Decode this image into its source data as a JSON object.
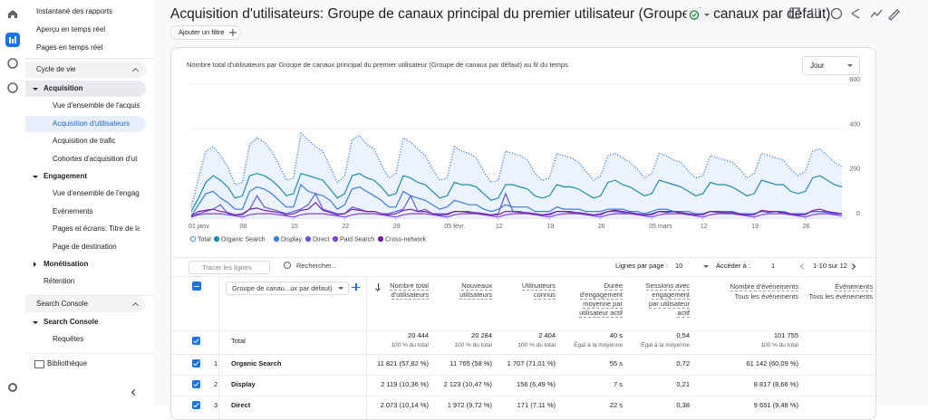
{
  "nav": [
    "Instantané des rapports",
    "Aperçu en temps réel",
    "Pages en temps réel",
    "Cycle de vie",
    "Acquisition",
    "Vue d'ensemble de l'acquis",
    "Acquisition d'utilisateurs",
    "Acquisition de trafic",
    "Cohortes d'acquisition d'ut",
    "Engagement",
    "Vue d'ensemble de l'engag",
    "Événements",
    "Pages et écrans: Titre de la",
    "Page de destination",
    "Monétisation",
    "Rétention",
    "Search Console",
    "Search Console",
    "Requêtes",
    "Bibliothèque"
  ],
  "header": {
    "title": "Acquisition d'utilisateurs: Groupe de canaux principal du premier utilisateur (Groupe de canaux par défaut)",
    "add_filter": "Ajouter un filtre"
  },
  "period_select": "Jour",
  "chart_data": {
    "type": "line",
    "title": "Nombre total d'utilisateurs par Groupe de canaux principal du premier utilisateur (Groupe de canaux par défaut) au fil du temps",
    "categories": [
      "01 janv.",
      null,
      null,
      null,
      null,
      null,
      null,
      "08",
      null,
      null,
      null,
      null,
      null,
      null,
      "15",
      null,
      null,
      null,
      null,
      null,
      null,
      "22",
      null,
      null,
      null,
      null,
      null,
      null,
      "29",
      null,
      null,
      null,
      null,
      null,
      null,
      "05 févr.",
      null,
      null,
      null,
      null,
      null,
      null,
      "12",
      null,
      null,
      null,
      null,
      null,
      null,
      "19",
      null,
      null,
      null,
      null,
      null,
      null,
      "26",
      null,
      null,
      null,
      null,
      null,
      null,
      "05 mars",
      null,
      null,
      null,
      null,
      null,
      null,
      "12",
      null,
      null,
      null,
      null,
      null,
      null,
      "19",
      null,
      null,
      null,
      null,
      null,
      null,
      "26",
      null,
      null,
      null,
      null,
      null
    ],
    "ylim": [
      0,
      600
    ],
    "yticks": [
      0,
      200,
      400,
      600
    ],
    "grid": true,
    "series": [
      {
        "name": "Total",
        "color": "#4a86e8",
        "values": [
          50,
          180,
          300,
          320,
          280,
          230,
          150,
          160,
          330,
          360,
          340,
          300,
          240,
          170,
          180,
          380,
          350,
          320,
          300,
          230,
          160,
          190,
          350,
          370,
          330,
          310,
          240,
          180,
          200,
          360,
          340,
          310,
          280,
          220,
          170,
          180,
          320,
          300,
          290,
          270,
          210,
          160,
          170,
          300,
          290,
          280,
          260,
          200,
          170,
          180,
          290,
          280,
          270,
          250,
          210,
          170,
          190,
          280,
          290,
          270,
          250,
          220,
          180,
          200,
          290,
          280,
          260,
          250,
          210,
          180,
          190,
          280,
          270,
          260,
          250,
          220,
          180,
          200,
          290,
          280,
          270,
          260,
          220,
          190,
          210,
          300,
          310,
          280,
          250,
          230
        ]
      },
      {
        "name": "Organic Search",
        "color": "#1b8fa8",
        "values": [
          30,
          90,
          160,
          190,
          170,
          140,
          90,
          100,
          190,
          200,
          190,
          170,
          140,
          100,
          110,
          200,
          190,
          180,
          170,
          130,
          90,
          110,
          190,
          200,
          180,
          170,
          140,
          100,
          110,
          190,
          180,
          160,
          150,
          120,
          90,
          100,
          160,
          150,
          150,
          140,
          110,
          80,
          90,
          150,
          150,
          140,
          130,
          100,
          90,
          100,
          150,
          140,
          140,
          130,
          110,
          90,
          100,
          160,
          170,
          150,
          140,
          120,
          100,
          110,
          170,
          160,
          150,
          140,
          120,
          100,
          110,
          160,
          150,
          150,
          140,
          120,
          100,
          110,
          170,
          160,
          150,
          150,
          120,
          110,
          120,
          180,
          190,
          170,
          150,
          140
        ]
      },
      {
        "name": "Display",
        "color": "#3d7be0",
        "values": [
          10,
          60,
          110,
          120,
          90,
          70,
          40,
          40,
          120,
          140,
          130,
          110,
          80,
          50,
          50,
          150,
          120,
          110,
          100,
          80,
          40,
          60,
          130,
          140,
          120,
          100,
          80,
          50,
          50,
          120,
          100,
          90,
          80,
          60,
          40,
          50,
          80,
          70,
          60,
          60,
          40,
          30,
          40,
          60,
          50,
          50,
          50,
          30,
          30,
          30,
          50,
          40,
          40,
          40,
          30,
          30,
          30,
          40,
          40,
          40,
          30,
          30,
          20,
          30,
          40,
          40,
          30,
          30,
          30,
          20,
          20,
          30,
          30,
          30,
          30,
          20,
          20,
          20,
          30,
          30,
          30,
          30,
          20,
          20,
          20,
          30,
          30,
          30,
          20,
          20
        ]
      },
      {
        "name": "Direct",
        "color": "#5c5ce0",
        "values": [
          5,
          20,
          30,
          40,
          60,
          20,
          15,
          20,
          40,
          100,
          50,
          40,
          30,
          20,
          30,
          40,
          60,
          110,
          40,
          30,
          20,
          20,
          50,
          40,
          30,
          30,
          20,
          20,
          30,
          40,
          100,
          30,
          40,
          20,
          20,
          20,
          30,
          30,
          30,
          20,
          20,
          15,
          20,
          110,
          30,
          30,
          20,
          20,
          15,
          20,
          30,
          30,
          30,
          20,
          20,
          15,
          20,
          30,
          30,
          25,
          20,
          20,
          15,
          20,
          30,
          25,
          30,
          20,
          20,
          15,
          20,
          30,
          25,
          25,
          20,
          15,
          15,
          20,
          30,
          25,
          30,
          20,
          20,
          15,
          20,
          30,
          30,
          25,
          20,
          20
        ]
      },
      {
        "name": "Paid Search",
        "color": "#7b3fe4",
        "values": [
          5,
          15,
          20,
          20,
          20,
          15,
          10,
          5,
          15,
          20,
          20,
          20,
          15,
          10,
          5,
          15,
          20,
          20,
          20,
          15,
          10,
          5,
          15,
          20,
          20,
          20,
          15,
          10,
          5,
          15,
          20,
          20,
          20,
          15,
          10,
          5,
          15,
          20,
          20,
          20,
          15,
          10,
          5,
          15,
          20,
          20,
          20,
          15,
          10,
          5,
          15,
          20,
          20,
          20,
          15,
          10,
          5,
          15,
          20,
          20,
          20,
          15,
          10,
          5,
          15,
          20,
          20,
          20,
          15,
          10,
          5,
          15,
          20,
          20,
          20,
          15,
          10,
          5,
          15,
          20,
          20,
          20,
          15,
          10,
          5,
          15,
          20,
          20,
          15,
          10
        ]
      },
      {
        "name": "Cross-network",
        "color": "#7a1f9e",
        "values": [
          10,
          30,
          35,
          40,
          30,
          25,
          15,
          15,
          40,
          45,
          35,
          30,
          25,
          15,
          20,
          35,
          40,
          70,
          35,
          25,
          15,
          20,
          40,
          35,
          30,
          30,
          20,
          15,
          20,
          35,
          40,
          30,
          30,
          20,
          15,
          15,
          30,
          30,
          25,
          25,
          20,
          15,
          15,
          30,
          30,
          25,
          25,
          20,
          15,
          15,
          30,
          30,
          25,
          25,
          20,
          15,
          15,
          30,
          35,
          30,
          25,
          20,
          15,
          15,
          30,
          30,
          30,
          25,
          20,
          15,
          15,
          30,
          30,
          25,
          25,
          20,
          15,
          15,
          35,
          30,
          30,
          25,
          20,
          15,
          15,
          35,
          40,
          30,
          25,
          20
        ]
      }
    ]
  },
  "toolbar": {
    "plot_rows": "Tracer les lignes",
    "search": "Rechercher...",
    "rows_per_page": "Lignes par page :",
    "rows_value": "10",
    "goto": "Accéder à :",
    "goto_value": "1",
    "range": "1-10 sur 12"
  },
  "table": {
    "dimension": "Groupe de canau...ux par défaut)",
    "columns": [
      {
        "lines": [
          "Nombre total",
          "d'utilisateurs"
        ]
      },
      {
        "lines": [
          "Nouveaux",
          "utilisateurs"
        ]
      },
      {
        "lines": [
          "Utilisateurs",
          "connus"
        ]
      },
      {
        "lines": [
          "Durée",
          "d'engagement",
          "moyenne par",
          "utilisateur actif"
        ]
      },
      {
        "lines": [
          "Sessions avec",
          "engagement",
          "par utilisateur",
          "actif"
        ]
      },
      {
        "lines": [
          "Nombre d'événements"
        ],
        "sub": "Tous les événements"
      },
      {
        "lines": [
          "Événements"
        ],
        "sub": "Tous les événements"
      }
    ],
    "total": {
      "label": "Total",
      "values": [
        "20 444",
        "20 284",
        "2 404",
        "40 s",
        "0,54",
        "101 755"
      ],
      "notes": [
        "100 % du total",
        "100 % du total",
        "100 % du total",
        "Égal à la moyenne",
        "Égal à la moyenne",
        "100 % du total"
      ]
    },
    "rows": [
      {
        "rank": "1",
        "name": "Organic Search",
        "values": [
          "11 821 (57,82 %)",
          "11 765 (58 %)",
          "1 707 (71,01 %)",
          "55 s",
          "0,72",
          "61 142 (60,09 %)"
        ]
      },
      {
        "rank": "2",
        "name": "Display",
        "values": [
          "2 119 (10,36 %)",
          "2 123 (10,47 %)",
          "156 (6,49 %)",
          "7 s",
          "0,21",
          "8 817 (8,66 %)"
        ]
      },
      {
        "rank": "3",
        "name": "Direct",
        "values": [
          "2 073 (10,14 %)",
          "1 972 (9,72 %)",
          "171 (7,11 %)",
          "22 s",
          "0,38",
          "9 651 (9,48 %)"
        ]
      }
    ]
  }
}
